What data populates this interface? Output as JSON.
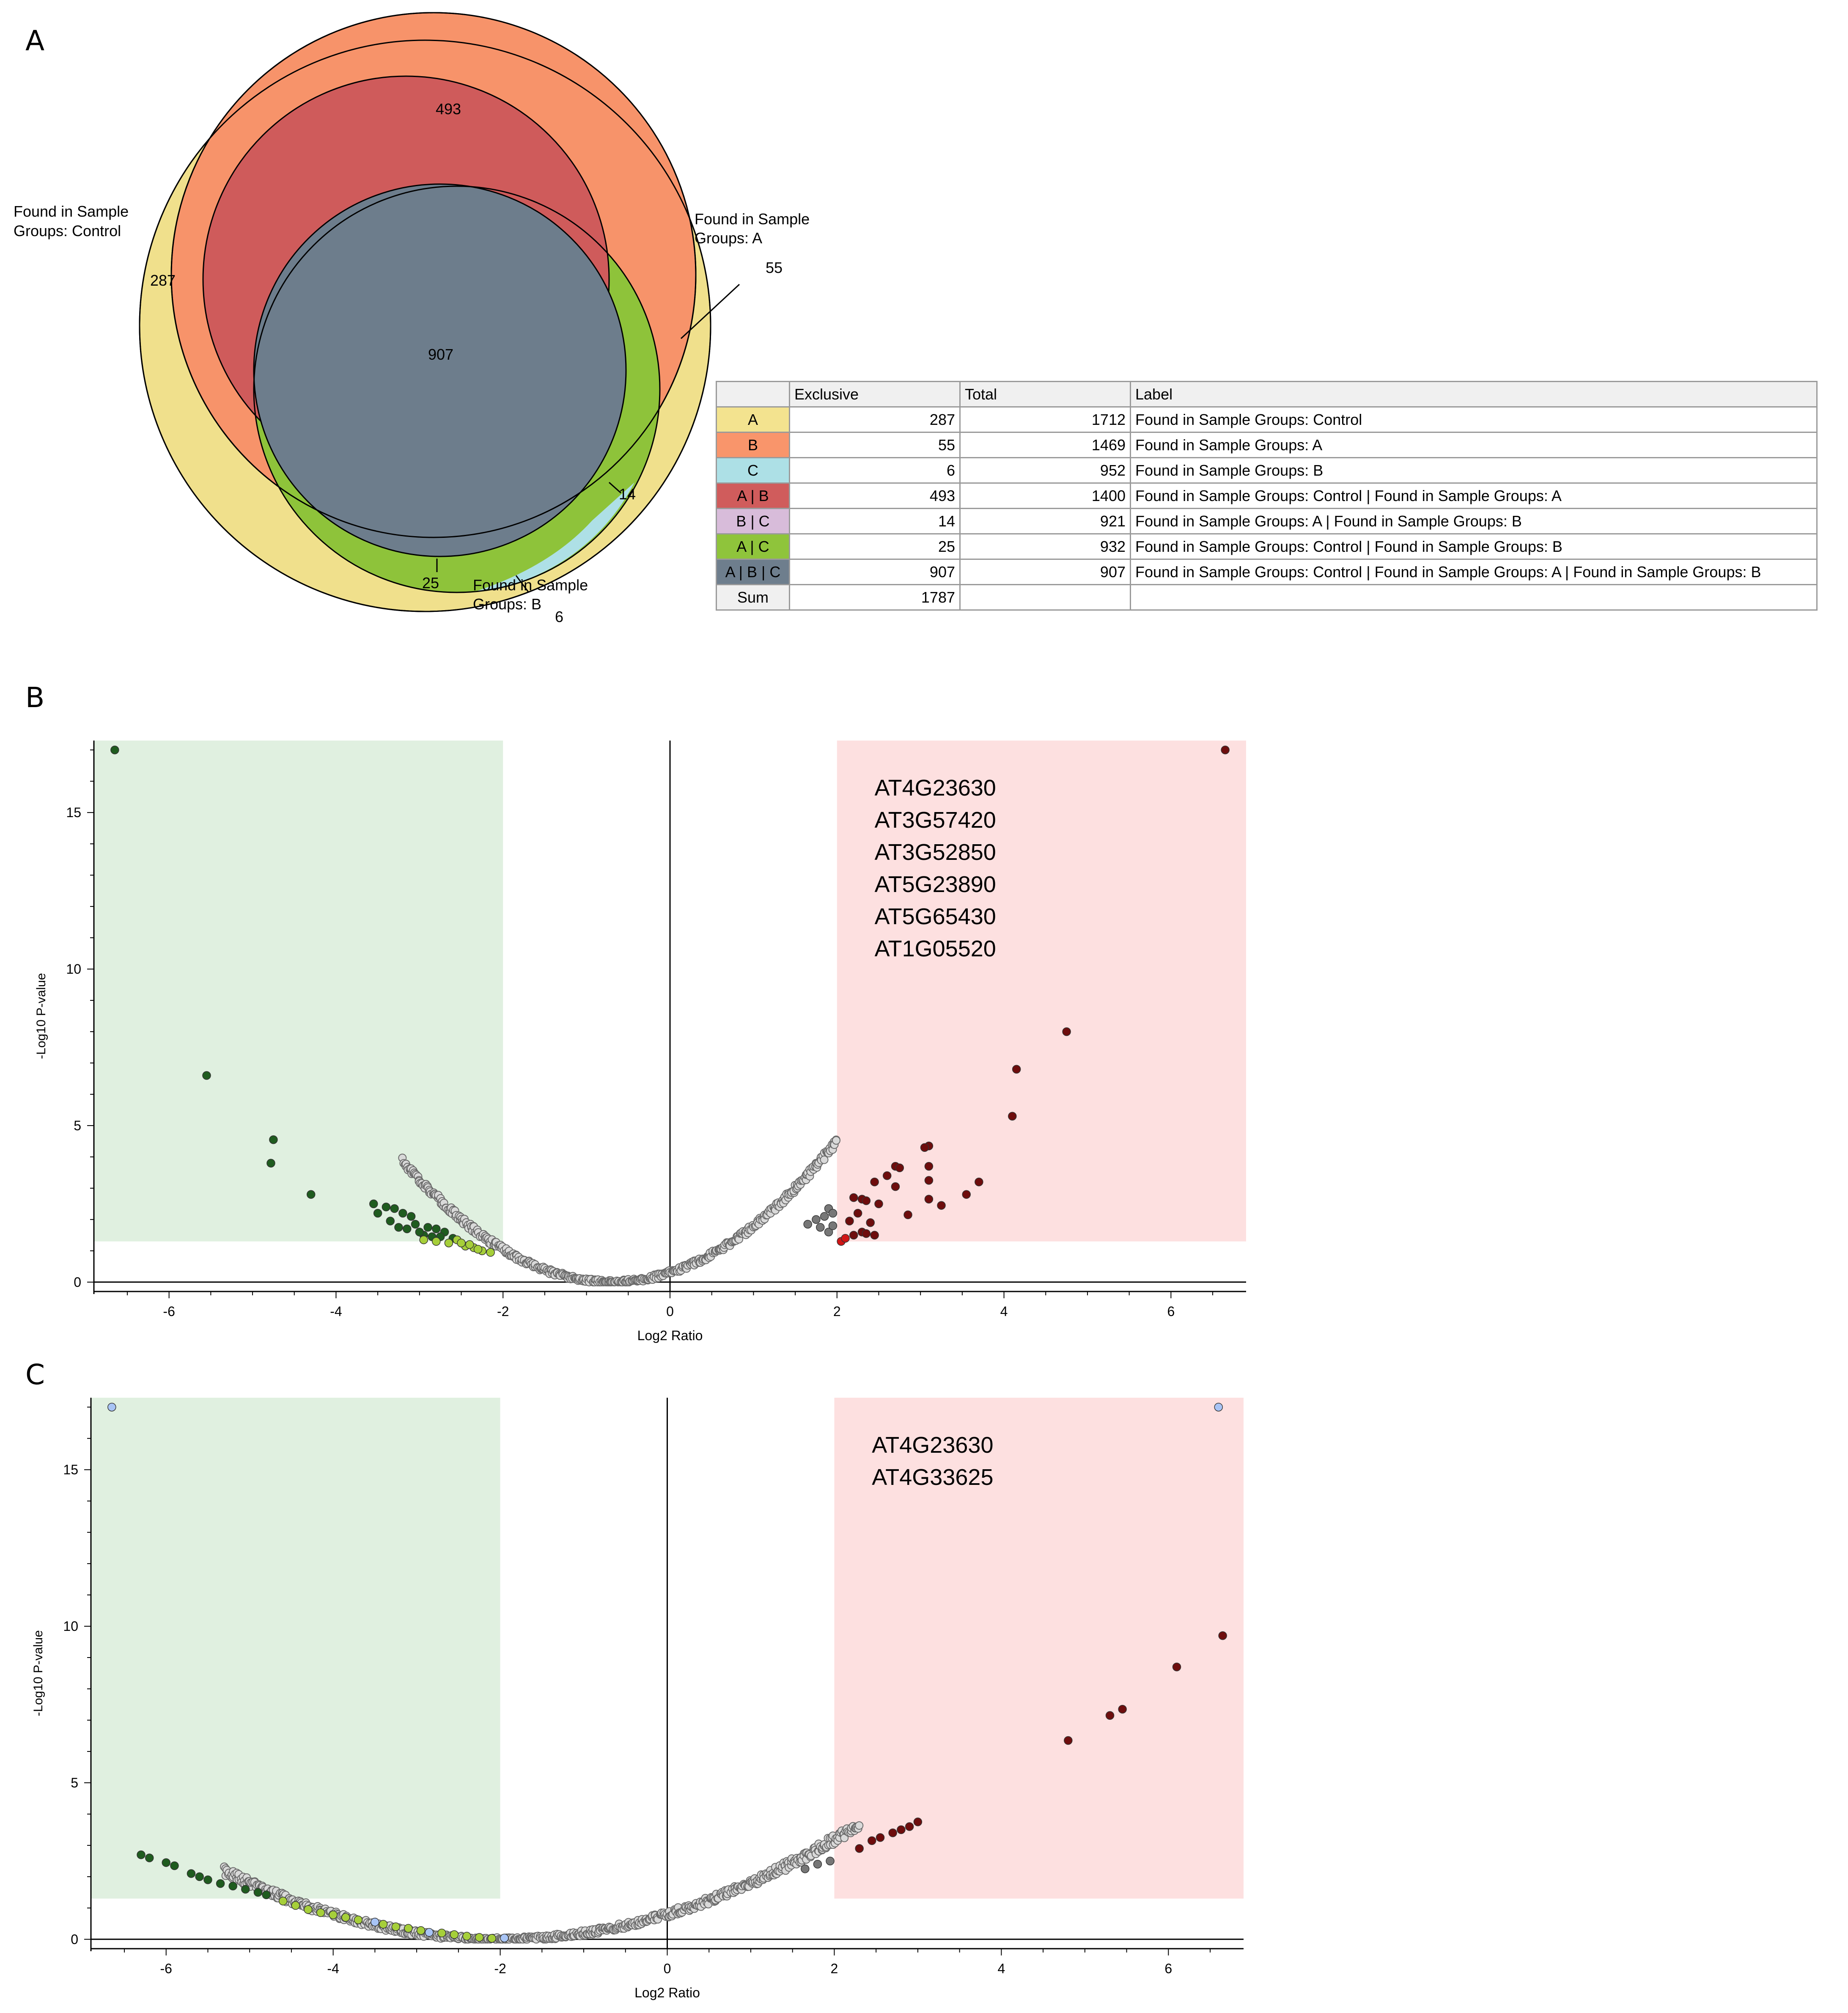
{
  "panels": {
    "a": "A",
    "b": "B",
    "c": "C"
  },
  "venn": {
    "set_labels": {
      "control": [
        "Found in Sample",
        "Groups: Control"
      ],
      "a": [
        "Found in Sample",
        "Groups: A"
      ],
      "b": [
        "Found in Sample",
        "Groups: B"
      ]
    },
    "region_counts": {
      "a_only": "287",
      "b_only": "55",
      "c_only": "6",
      "ab": "493",
      "bc": "14",
      "ac": "25",
      "abc": "907"
    },
    "colors": {
      "a": "#f0e08c",
      "b": "#f7936a",
      "c": "#aee0e6",
      "ab": "#cf5b5b",
      "bc": "#d6b9d9",
      "ac": "#8ec33a",
      "abc": "#6d7d8c"
    }
  },
  "table": {
    "headers": [
      "",
      "Exclusive",
      "Total",
      "Label"
    ],
    "rows": [
      {
        "key": "A",
        "color": "#f3e38f",
        "exclusive": "287",
        "total": "1712",
        "label": "Found in Sample Groups: Control"
      },
      {
        "key": "B",
        "color": "#f9956b",
        "exclusive": "55",
        "total": "1469",
        "label": "Found in Sample Groups: A"
      },
      {
        "key": "C",
        "color": "#ade0e6",
        "exclusive": "6",
        "total": "952",
        "label": "Found in Sample Groups: B"
      },
      {
        "key": "A | B",
        "color": "#d05c5c",
        "exclusive": "493",
        "total": "1400",
        "label": "Found in Sample Groups: Control | Found in Sample Groups: A"
      },
      {
        "key": "B | C",
        "color": "#d8bcda",
        "exclusive": "14",
        "total": "921",
        "label": "Found in Sample Groups: A | Found in Sample Groups: B"
      },
      {
        "key": "A | C",
        "color": "#8fc43b",
        "exclusive": "25",
        "total": "932",
        "label": "Found in Sample Groups: Control | Found in Sample Groups: B"
      },
      {
        "key": "A | B | C",
        "color": "#6e7e8d",
        "exclusive": "907",
        "total": "907",
        "label": "Found in Sample Groups: Control | Found in Sample Groups: A | Found in Sample Groups: B"
      }
    ],
    "sum": {
      "key": "Sum",
      "exclusive": "1787"
    }
  },
  "chart_data": [
    {
      "type": "scatter",
      "panel": "B",
      "xlabel": "Log2 Ratio",
      "ylabel": "-Log10 P-value",
      "xlim": [
        -6.9,
        6.9
      ],
      "ylim": [
        -0.3,
        17.3
      ],
      "xticks": [
        -6,
        -4,
        -2,
        0,
        2,
        4,
        6
      ],
      "yticks": [
        0,
        5,
        10,
        15
      ],
      "regions": [
        {
          "name": "down",
          "x": [
            -6.9,
            -2
          ],
          "y": [
            1.3,
            17.3
          ],
          "color": "#e0f0e0"
        },
        {
          "name": "up",
          "x": [
            2,
            6.9
          ],
          "y": [
            1.3,
            17.3
          ],
          "color": "#fde0e0"
        }
      ],
      "gene_labels": [
        "AT4G23630",
        "AT3G57420",
        "AT3G52850",
        "AT5G23890",
        "AT5G65430",
        "AT1G05520"
      ],
      "curve": {
        "vertex_x": -0.7,
        "k": 0.62,
        "xmin": -3.2,
        "xmax": 2.0
      },
      "series": [
        {
          "color": "#1f5c1f",
          "points": [
            [
              -6.65,
              17.0
            ],
            [
              -5.55,
              6.6
            ],
            [
              -4.75,
              4.55
            ],
            [
              -4.78,
              3.8
            ],
            [
              -4.3,
              2.8
            ],
            [
              -3.55,
              2.5
            ],
            [
              -3.5,
              2.2
            ],
            [
              -3.4,
              2.4
            ],
            [
              -3.3,
              2.35
            ],
            [
              -3.2,
              2.2
            ],
            [
              -3.1,
              2.1
            ],
            [
              -3.05,
              1.85
            ],
            [
              -3.35,
              1.95
            ],
            [
              -3.25,
              1.75
            ],
            [
              -3.15,
              1.7
            ],
            [
              -2.9,
              1.75
            ],
            [
              -2.8,
              1.7
            ],
            [
              -2.7,
              1.6
            ],
            [
              -2.95,
              1.5
            ],
            [
              -2.85,
              1.45
            ],
            [
              -3.0,
              1.6
            ],
            [
              -2.75,
              1.45
            ],
            [
              -2.6,
              1.4
            ]
          ]
        },
        {
          "color": "#a6cf3a",
          "points": [
            [
              -2.95,
              1.35
            ],
            [
              -2.8,
              1.3
            ],
            [
              -2.65,
              1.25
            ],
            [
              -2.55,
              1.35
            ],
            [
              -2.45,
              1.15
            ],
            [
              -2.35,
              1.1
            ],
            [
              -2.25,
              1.0
            ],
            [
              -2.15,
              0.95
            ],
            [
              -2.5,
              1.25
            ],
            [
              -2.4,
              1.2
            ],
            [
              -2.3,
              1.05
            ]
          ]
        },
        {
          "color": "#6e0d0d",
          "points": [
            [
              6.65,
              17.0
            ],
            [
              4.75,
              8.0
            ],
            [
              4.15,
              6.8
            ],
            [
              4.1,
              5.3
            ],
            [
              3.1,
              4.35
            ],
            [
              3.05,
              4.3
            ],
            [
              2.7,
              3.7
            ],
            [
              2.75,
              3.65
            ],
            [
              3.1,
              3.7
            ],
            [
              3.1,
              3.25
            ],
            [
              3.7,
              3.2
            ],
            [
              3.55,
              2.8
            ],
            [
              3.1,
              2.65
            ],
            [
              3.25,
              2.45
            ],
            [
              2.85,
              2.15
            ],
            [
              2.6,
              3.4
            ],
            [
              2.45,
              3.2
            ],
            [
              2.3,
              2.65
            ],
            [
              2.2,
              2.7
            ],
            [
              2.35,
              2.6
            ],
            [
              2.7,
              3.05
            ],
            [
              2.5,
              2.5
            ],
            [
              2.25,
              2.2
            ],
            [
              2.4,
              1.9
            ],
            [
              2.15,
              1.95
            ],
            [
              2.3,
              1.6
            ],
            [
              2.2,
              1.5
            ],
            [
              2.45,
              1.5
            ],
            [
              2.35,
              1.55
            ]
          ]
        },
        {
          "color": "#d01515",
          "points": [
            [
              2.05,
              1.3
            ],
            [
              2.1,
              1.4
            ]
          ]
        },
        {
          "color": "#777777",
          "points": [
            [
              1.9,
              2.35
            ],
            [
              1.85,
              2.1
            ],
            [
              1.95,
              2.2
            ],
            [
              1.75,
              2.0
            ],
            [
              1.65,
              1.85
            ],
            [
              1.9,
              1.6
            ],
            [
              1.8,
              1.75
            ],
            [
              1.95,
              1.8
            ]
          ]
        }
      ]
    },
    {
      "type": "scatter",
      "panel": "C",
      "xlabel": "Log2 Ratio",
      "ylabel": "-Log10 P-value",
      "xlim": [
        -6.9,
        6.9
      ],
      "ylim": [
        -0.3,
        17.3
      ],
      "xticks": [
        -6,
        -4,
        -2,
        0,
        2,
        4,
        6
      ],
      "yticks": [
        0,
        5,
        10,
        15
      ],
      "regions": [
        {
          "name": "down",
          "x": [
            -6.9,
            -2
          ],
          "y": [
            1.3,
            17.3
          ],
          "color": "#e0f0e0"
        },
        {
          "name": "up",
          "x": [
            2,
            6.9
          ],
          "y": [
            1.3,
            17.3
          ],
          "color": "#fde0e0"
        }
      ],
      "gene_labels": [
        "AT4G23630",
        "AT4G33625"
      ],
      "curve": {
        "vertex_x": -2.0,
        "k": 0.2,
        "xmin": -5.3,
        "xmax": 2.3
      },
      "series": [
        {
          "color": "#1f5c1f",
          "points": [
            [
              -6.3,
              2.7
            ],
            [
              -6.2,
              2.6
            ],
            [
              -6.0,
              2.45
            ],
            [
              -5.9,
              2.35
            ],
            [
              -5.7,
              2.1
            ],
            [
              -5.6,
              2.0
            ],
            [
              -5.5,
              1.9
            ],
            [
              -5.35,
              1.78
            ],
            [
              -5.2,
              1.7
            ],
            [
              -5.05,
              1.6
            ],
            [
              -4.9,
              1.5
            ],
            [
              -4.8,
              1.42
            ]
          ]
        },
        {
          "color": "#a6cf3a",
          "points": [
            [
              -4.6,
              1.22
            ],
            [
              -4.45,
              1.08
            ],
            [
              -4.3,
              0.95
            ],
            [
              -4.15,
              0.85
            ],
            [
              -4.0,
              0.78
            ],
            [
              -3.85,
              0.7
            ],
            [
              -3.7,
              0.62
            ],
            [
              -3.4,
              0.48
            ],
            [
              -3.25,
              0.4
            ],
            [
              -3.1,
              0.35
            ],
            [
              -2.95,
              0.28
            ],
            [
              -2.7,
              0.2
            ],
            [
              -2.55,
              0.15
            ],
            [
              -2.4,
              0.1
            ],
            [
              -2.25,
              0.06
            ],
            [
              -2.1,
              0.03
            ]
          ]
        },
        {
          "color": "#6e0d0d",
          "points": [
            [
              6.65,
              9.7
            ],
            [
              6.1,
              8.7
            ],
            [
              5.45,
              7.35
            ],
            [
              5.3,
              7.15
            ],
            [
              4.8,
              6.35
            ],
            [
              3.0,
              3.75
            ],
            [
              2.9,
              3.6
            ],
            [
              2.8,
              3.5
            ],
            [
              2.7,
              3.4
            ],
            [
              2.55,
              3.25
            ],
            [
              2.45,
              3.15
            ],
            [
              2.3,
              2.9
            ]
          ]
        },
        {
          "color": "#777777",
          "points": [
            [
              1.95,
              2.5
            ],
            [
              1.8,
              2.4
            ],
            [
              1.65,
              2.25
            ]
          ]
        },
        {
          "color": "#a8c4f5",
          "points": [
            [
              -6.65,
              17.0
            ],
            [
              6.6,
              17.0
            ],
            [
              -3.5,
              0.55
            ],
            [
              -2.85,
              0.22
            ],
            [
              -1.95,
              0.04
            ]
          ]
        }
      ]
    }
  ]
}
